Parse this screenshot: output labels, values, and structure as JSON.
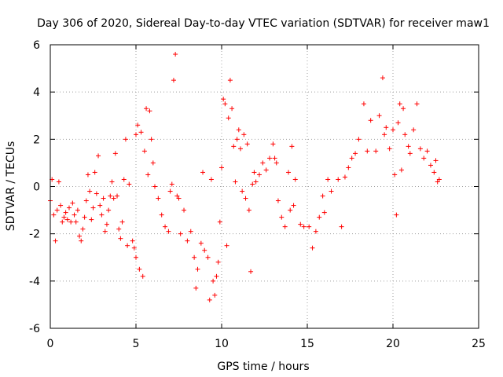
{
  "chart_data": {
    "type": "scatter",
    "title": "Day 306 of 2020, Sidereal Day-to-day VTEC variation (SDTVAR) for receiver maw1",
    "xlabel": "GPS time / hours",
    "ylabel": "SDTVAR / TECUs",
    "xlim": [
      0,
      25
    ],
    "ylim": [
      -6,
      6
    ],
    "xticks": [
      0,
      5,
      10,
      15,
      20,
      25
    ],
    "yticks": [
      -6,
      -4,
      -2,
      0,
      2,
      4,
      6
    ],
    "grid": true,
    "marker": "+",
    "color": "#ff0000",
    "series": [
      {
        "name": "SDTVAR",
        "points": [
          [
            0.0,
            -0.6
          ],
          [
            0.1,
            0.3
          ],
          [
            0.2,
            -1.2
          ],
          [
            0.3,
            -2.3
          ],
          [
            0.4,
            -1.0
          ],
          [
            0.5,
            0.2
          ],
          [
            0.6,
            -0.8
          ],
          [
            0.7,
            -1.5
          ],
          [
            0.8,
            -1.3
          ],
          [
            0.9,
            -1.1
          ],
          [
            1.0,
            -1.4
          ],
          [
            1.1,
            -0.9
          ],
          [
            1.2,
            -1.5
          ],
          [
            1.3,
            -0.7
          ],
          [
            1.4,
            -1.2
          ],
          [
            1.5,
            -1.5
          ],
          [
            1.6,
            -1.0
          ],
          [
            1.7,
            -2.1
          ],
          [
            1.8,
            -2.3
          ],
          [
            1.9,
            -1.8
          ],
          [
            2.0,
            -1.3
          ],
          [
            2.1,
            -0.6
          ],
          [
            2.2,
            0.5
          ],
          [
            2.3,
            -0.2
          ],
          [
            2.4,
            -1.4
          ],
          [
            2.5,
            -0.9
          ],
          [
            2.6,
            0.6
          ],
          [
            2.7,
            -0.3
          ],
          [
            2.8,
            1.3
          ],
          [
            2.9,
            -0.8
          ],
          [
            3.0,
            -1.2
          ],
          [
            3.1,
            -0.5
          ],
          [
            3.2,
            -1.9
          ],
          [
            3.3,
            -1.6
          ],
          [
            3.4,
            -1.0
          ],
          [
            3.5,
            -0.4
          ],
          [
            3.6,
            0.2
          ],
          [
            3.7,
            -0.5
          ],
          [
            3.8,
            1.4
          ],
          [
            3.9,
            -0.4
          ],
          [
            4.0,
            -1.8
          ],
          [
            4.1,
            -2.2
          ],
          [
            4.2,
            -1.5
          ],
          [
            4.3,
            0.3
          ],
          [
            4.4,
            2.0
          ],
          [
            4.5,
            -2.5
          ],
          [
            4.6,
            0.1
          ],
          [
            4.8,
            -2.3
          ],
          [
            4.9,
            -2.6
          ],
          [
            5.0,
            2.2
          ],
          [
            5.0,
            -3.0
          ],
          [
            5.1,
            2.6
          ],
          [
            5.2,
            -3.5
          ],
          [
            5.3,
            2.3
          ],
          [
            5.4,
            -3.8
          ],
          [
            5.5,
            1.5
          ],
          [
            5.6,
            3.3
          ],
          [
            5.7,
            0.5
          ],
          [
            5.8,
            3.2
          ],
          [
            5.9,
            2.0
          ],
          [
            6.0,
            1.0
          ],
          [
            6.1,
            0.0
          ],
          [
            6.3,
            -0.5
          ],
          [
            6.5,
            -1.2
          ],
          [
            6.7,
            -1.7
          ],
          [
            6.9,
            -1.9
          ],
          [
            7.0,
            -0.2
          ],
          [
            7.1,
            0.1
          ],
          [
            7.2,
            4.5
          ],
          [
            7.3,
            5.6
          ],
          [
            7.4,
            -0.4
          ],
          [
            7.5,
            -0.5
          ],
          [
            7.6,
            -2.0
          ],
          [
            7.8,
            -1.0
          ],
          [
            8.0,
            -2.3
          ],
          [
            8.2,
            -1.9
          ],
          [
            8.4,
            -3.0
          ],
          [
            8.5,
            -4.3
          ],
          [
            8.6,
            -3.5
          ],
          [
            8.8,
            -2.4
          ],
          [
            8.9,
            0.6
          ],
          [
            9.0,
            -2.7
          ],
          [
            9.2,
            -3.0
          ],
          [
            9.3,
            -4.8
          ],
          [
            9.4,
            0.3
          ],
          [
            9.5,
            -4.0
          ],
          [
            9.6,
            -4.6
          ],
          [
            9.7,
            -3.8
          ],
          [
            9.8,
            -3.2
          ],
          [
            9.9,
            -1.5
          ],
          [
            10.0,
            0.8
          ],
          [
            10.1,
            3.7
          ],
          [
            10.2,
            3.5
          ],
          [
            10.3,
            -2.5
          ],
          [
            10.4,
            2.9
          ],
          [
            10.5,
            4.5
          ],
          [
            10.6,
            3.3
          ],
          [
            10.7,
            1.7
          ],
          [
            10.8,
            0.2
          ],
          [
            10.9,
            2.0
          ],
          [
            11.0,
            2.4
          ],
          [
            11.1,
            1.6
          ],
          [
            11.2,
            -0.2
          ],
          [
            11.3,
            2.2
          ],
          [
            11.4,
            -0.5
          ],
          [
            11.5,
            1.8
          ],
          [
            11.6,
            -1.0
          ],
          [
            11.7,
            -3.6
          ],
          [
            11.8,
            0.1
          ],
          [
            11.9,
            0.6
          ],
          [
            12.0,
            0.2
          ],
          [
            12.2,
            0.5
          ],
          [
            12.4,
            1.0
          ],
          [
            12.6,
            0.7
          ],
          [
            12.8,
            1.2
          ],
          [
            13.0,
            1.8
          ],
          [
            13.1,
            1.2
          ],
          [
            13.2,
            1.0
          ],
          [
            13.3,
            -0.6
          ],
          [
            13.5,
            -1.3
          ],
          [
            13.7,
            -1.7
          ],
          [
            13.9,
            0.6
          ],
          [
            14.0,
            -1.0
          ],
          [
            14.1,
            1.7
          ],
          [
            14.2,
            -0.8
          ],
          [
            14.3,
            0.3
          ],
          [
            14.6,
            -1.6
          ],
          [
            14.8,
            -1.7
          ],
          [
            15.1,
            -1.7
          ],
          [
            15.3,
            -2.6
          ],
          [
            15.5,
            -1.9
          ],
          [
            15.7,
            -1.3
          ],
          [
            15.9,
            -0.4
          ],
          [
            16.0,
            -1.1
          ],
          [
            16.2,
            0.3
          ],
          [
            16.4,
            -0.2
          ],
          [
            16.8,
            0.3
          ],
          [
            17.0,
            -1.7
          ],
          [
            17.2,
            0.4
          ],
          [
            17.4,
            0.8
          ],
          [
            17.6,
            1.2
          ],
          [
            17.8,
            1.4
          ],
          [
            18.0,
            2.0
          ],
          [
            18.3,
            3.5
          ],
          [
            18.5,
            1.5
          ],
          [
            18.7,
            2.8
          ],
          [
            19.0,
            1.5
          ],
          [
            19.2,
            3.0
          ],
          [
            19.4,
            4.6
          ],
          [
            19.5,
            2.2
          ],
          [
            19.6,
            2.5
          ],
          [
            19.8,
            1.6
          ],
          [
            20.0,
            2.4
          ],
          [
            20.1,
            0.5
          ],
          [
            20.2,
            -1.2
          ],
          [
            20.3,
            2.7
          ],
          [
            20.4,
            3.5
          ],
          [
            20.5,
            0.7
          ],
          [
            20.6,
            3.3
          ],
          [
            20.7,
            2.2
          ],
          [
            20.9,
            1.7
          ],
          [
            21.0,
            1.4
          ],
          [
            21.2,
            2.4
          ],
          [
            21.4,
            3.5
          ],
          [
            21.6,
            1.6
          ],
          [
            21.8,
            1.2
          ],
          [
            22.0,
            1.5
          ],
          [
            22.2,
            0.9
          ],
          [
            22.4,
            0.6
          ],
          [
            22.5,
            1.1
          ],
          [
            22.6,
            0.2
          ],
          [
            22.7,
            0.3
          ]
        ]
      }
    ]
  }
}
